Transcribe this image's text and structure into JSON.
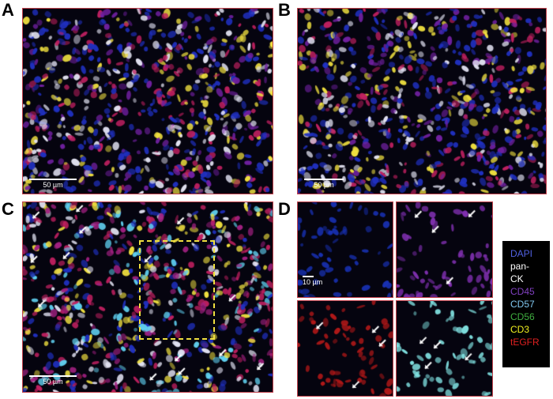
{
  "panels": [
    {
      "label": "A",
      "scale": "50 µm"
    },
    {
      "label": "B",
      "scale": "50 µm"
    },
    {
      "label": "C",
      "scale": "50 µm"
    },
    {
      "label": "D",
      "scale": "10 µm"
    }
  ],
  "legend": [
    {
      "text": "DAPI",
      "color": "#5060e0"
    },
    {
      "text": "pan-",
      "color": "#ffffff"
    },
    {
      "text": "CK",
      "color": "#ffffff"
    },
    {
      "text": "CD45",
      "color": "#8040c0"
    },
    {
      "text": "CD57",
      "color": "#80c8f0"
    },
    {
      "text": "CD56",
      "color": "#40b040"
    },
    {
      "text": "CD3",
      "color": "#f0f020"
    },
    {
      "text": "tEGFR",
      "color": "#e02020"
    }
  ]
}
